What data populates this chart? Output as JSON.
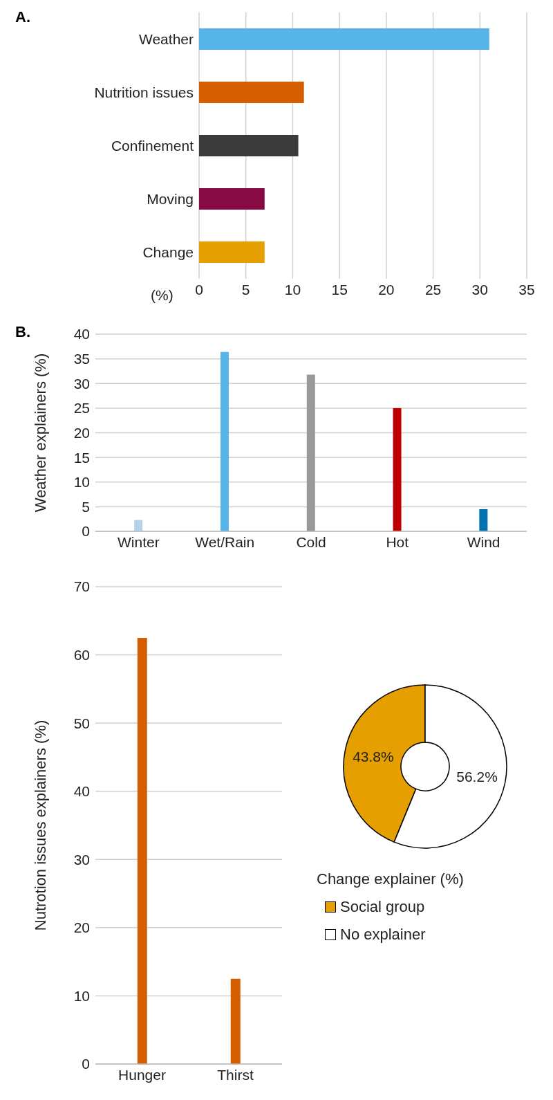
{
  "chart_data": [
    {
      "type": "bar",
      "orientation": "horizontal",
      "annotations": [
        "A."
      ],
      "xlabel": "(%)",
      "categories": [
        "Weather",
        "Nutrition issues",
        "Confinement",
        "Moving",
        "Change"
      ],
      "values": [
        31,
        11.2,
        10.6,
        7,
        7
      ],
      "colors": [
        "#56b4e9",
        "#d55e00",
        "#3a3a3a",
        "#880a45",
        "#e69f00"
      ],
      "xlim": [
        0,
        35
      ],
      "xticks": [
        0,
        5,
        10,
        15,
        20,
        25,
        30,
        35
      ],
      "grid": "x"
    },
    {
      "type": "bar",
      "annotations": [
        "B."
      ],
      "ylabel": "Weather explainers (%)",
      "categories": [
        "Winter",
        "Wet/Rain",
        "Cold",
        "Hot",
        "Wind"
      ],
      "values": [
        2.3,
        36.4,
        31.8,
        25,
        4.5
      ],
      "colors": [
        "#b4d3ea",
        "#56b4e9",
        "#999999",
        "#c00000",
        "#0072b2"
      ],
      "ylim": [
        0,
        40
      ],
      "yticks": [
        0,
        5,
        10,
        15,
        20,
        25,
        30,
        35,
        40
      ],
      "grid": "y"
    },
    {
      "type": "bar",
      "ylabel": "Nutrotion issues explainers (%)",
      "categories": [
        "Hunger",
        "Thirst"
      ],
      "values": [
        62.5,
        12.5
      ],
      "color": "#d55e00",
      "ylim": [
        0,
        70
      ],
      "yticks": [
        0,
        10,
        20,
        30,
        40,
        50,
        60,
        70
      ],
      "grid": "y"
    },
    {
      "type": "donut",
      "legend_title": "Change explainer (%)",
      "categories": [
        "Social group",
        "No explainer"
      ],
      "values": [
        43.8,
        56.2
      ],
      "colors": [
        "#e69f00",
        "#ffffff"
      ],
      "value_labels": [
        "43.8%",
        "56.2%"
      ],
      "legend": "bottom"
    }
  ]
}
